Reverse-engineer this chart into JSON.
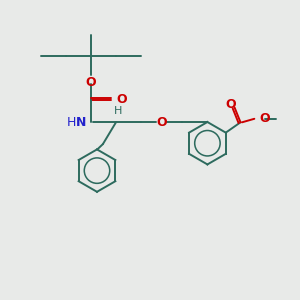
{
  "background_color": "#e8eae8",
  "bond_color": "#2d6b5e",
  "oxygen_color": "#cc0000",
  "nitrogen_color": "#2222cc",
  "line_width": 1.4,
  "figsize": [
    3.0,
    3.0
  ],
  "dpi": 100,
  "xlim": [
    0,
    10
  ],
  "ylim": [
    0,
    10
  ]
}
